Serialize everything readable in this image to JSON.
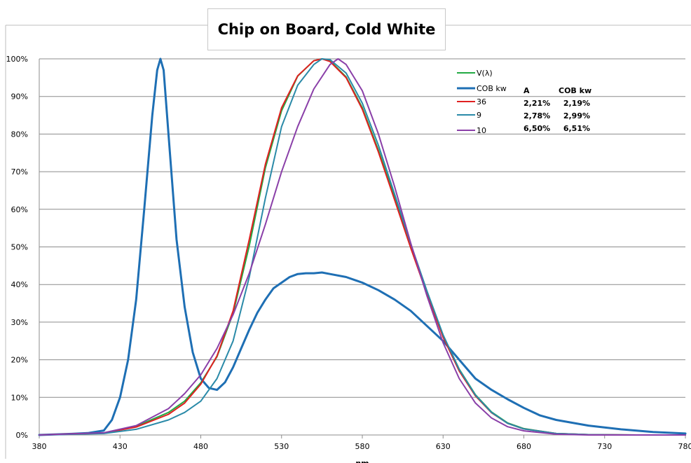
{
  "chart_data": {
    "type": "line",
    "title": "Chip on Board, Cold White",
    "xlabel": "nm",
    "ylabel": "",
    "xlim": [
      380,
      780
    ],
    "ylim": [
      0,
      1
    ],
    "x_ticks": [
      "380",
      "430",
      "480",
      "530",
      "580",
      "630",
      "680",
      "730",
      "780"
    ],
    "y_ticks": [
      "0%",
      "10%",
      "20%",
      "30%",
      "40%",
      "50%",
      "60%",
      "70%",
      "80%",
      "90%",
      "100%"
    ],
    "grid": "horizontal",
    "legend_position": "top-right",
    "table": {
      "headers": [
        "A",
        "COB kw"
      ],
      "rows": [
        {
          "label": "36",
          "values": [
            "2,21%",
            "2,19%"
          ]
        },
        {
          "label": "9",
          "values": [
            "2,78%",
            "2,99%"
          ]
        },
        {
          "label": "10",
          "values": [
            "6,50%",
            "6,51%"
          ]
        }
      ]
    },
    "series": [
      {
        "name": "V(λ)",
        "color": "#22aa44",
        "x": [
          380,
          400,
          420,
          440,
          460,
          470,
          480,
          490,
          500,
          510,
          520,
          530,
          540,
          550,
          555,
          560,
          570,
          580,
          590,
          600,
          610,
          620,
          630,
          640,
          650,
          660,
          670,
          680,
          700,
          720,
          750,
          780
        ],
        "y": [
          0,
          0.003,
          0.005,
          0.023,
          0.06,
          0.09,
          0.139,
          0.208,
          0.323,
          0.503,
          0.71,
          0.862,
          0.954,
          0.995,
          1.0,
          0.995,
          0.952,
          0.87,
          0.757,
          0.631,
          0.503,
          0.381,
          0.265,
          0.175,
          0.107,
          0.061,
          0.032,
          0.017,
          0.004,
          0.001,
          0,
          0
        ]
      },
      {
        "name": "COB kw",
        "color": "#1e6fb4",
        "x": [
          380,
          400,
          410,
          420,
          425,
          430,
          435,
          440,
          445,
          450,
          453,
          455,
          457,
          460,
          465,
          470,
          475,
          480,
          485,
          490,
          495,
          500,
          505,
          510,
          515,
          520,
          525,
          530,
          535,
          540,
          545,
          550,
          555,
          560,
          570,
          580,
          590,
          600,
          610,
          620,
          630,
          640,
          650,
          660,
          670,
          680,
          690,
          700,
          720,
          740,
          760,
          780
        ],
        "y": [
          0,
          0.003,
          0.005,
          0.012,
          0.04,
          0.1,
          0.2,
          0.36,
          0.6,
          0.85,
          0.97,
          1.0,
          0.97,
          0.8,
          0.52,
          0.34,
          0.22,
          0.15,
          0.125,
          0.12,
          0.14,
          0.18,
          0.23,
          0.28,
          0.325,
          0.36,
          0.39,
          0.405,
          0.42,
          0.428,
          0.43,
          0.43,
          0.432,
          0.428,
          0.42,
          0.405,
          0.385,
          0.36,
          0.33,
          0.29,
          0.25,
          0.2,
          0.15,
          0.12,
          0.095,
          0.072,
          0.052,
          0.04,
          0.025,
          0.015,
          0.008,
          0.004
        ]
      },
      {
        "name": "36",
        "color": "#e02020",
        "x": [
          380,
          400,
          420,
          440,
          460,
          470,
          480,
          490,
          500,
          510,
          520,
          530,
          540,
          550,
          555,
          560,
          570,
          580,
          590,
          600,
          610,
          620,
          630,
          640,
          650,
          660,
          670,
          680,
          700,
          720,
          750,
          780
        ],
        "y": [
          0,
          0.003,
          0.005,
          0.021,
          0.055,
          0.085,
          0.135,
          0.21,
          0.33,
          0.52,
          0.72,
          0.87,
          0.955,
          0.995,
          1.0,
          0.993,
          0.95,
          0.866,
          0.752,
          0.625,
          0.497,
          0.375,
          0.26,
          0.17,
          0.104,
          0.059,
          0.031,
          0.016,
          0.004,
          0.001,
          0,
          0
        ]
      },
      {
        "name": "9",
        "color": "#2a8aa8",
        "x": [
          380,
          400,
          420,
          440,
          460,
          470,
          480,
          490,
          500,
          510,
          520,
          530,
          540,
          550,
          555,
          560,
          570,
          580,
          590,
          600,
          610,
          620,
          630,
          640,
          650,
          660,
          670,
          680,
          700,
          720,
          750,
          780
        ],
        "y": [
          0,
          0.002,
          0.004,
          0.015,
          0.04,
          0.06,
          0.09,
          0.15,
          0.25,
          0.42,
          0.63,
          0.82,
          0.93,
          0.985,
          1.0,
          0.998,
          0.962,
          0.882,
          0.77,
          0.64,
          0.508,
          0.383,
          0.266,
          0.174,
          0.106,
          0.06,
          0.031,
          0.016,
          0.004,
          0.001,
          0,
          0
        ]
      },
      {
        "name": "10",
        "color": "#8a3fa8",
        "x": [
          380,
          400,
          420,
          440,
          460,
          470,
          480,
          490,
          500,
          510,
          520,
          530,
          540,
          550,
          560,
          565,
          570,
          580,
          590,
          600,
          610,
          620,
          630,
          640,
          650,
          660,
          670,
          680,
          700,
          720,
          750,
          780
        ],
        "y": [
          0,
          0.003,
          0.006,
          0.025,
          0.07,
          0.11,
          0.16,
          0.23,
          0.32,
          0.43,
          0.56,
          0.7,
          0.82,
          0.92,
          0.985,
          1.0,
          0.985,
          0.915,
          0.8,
          0.66,
          0.51,
          0.37,
          0.245,
          0.15,
          0.085,
          0.045,
          0.022,
          0.011,
          0.002,
          0,
          0,
          0
        ]
      }
    ]
  }
}
